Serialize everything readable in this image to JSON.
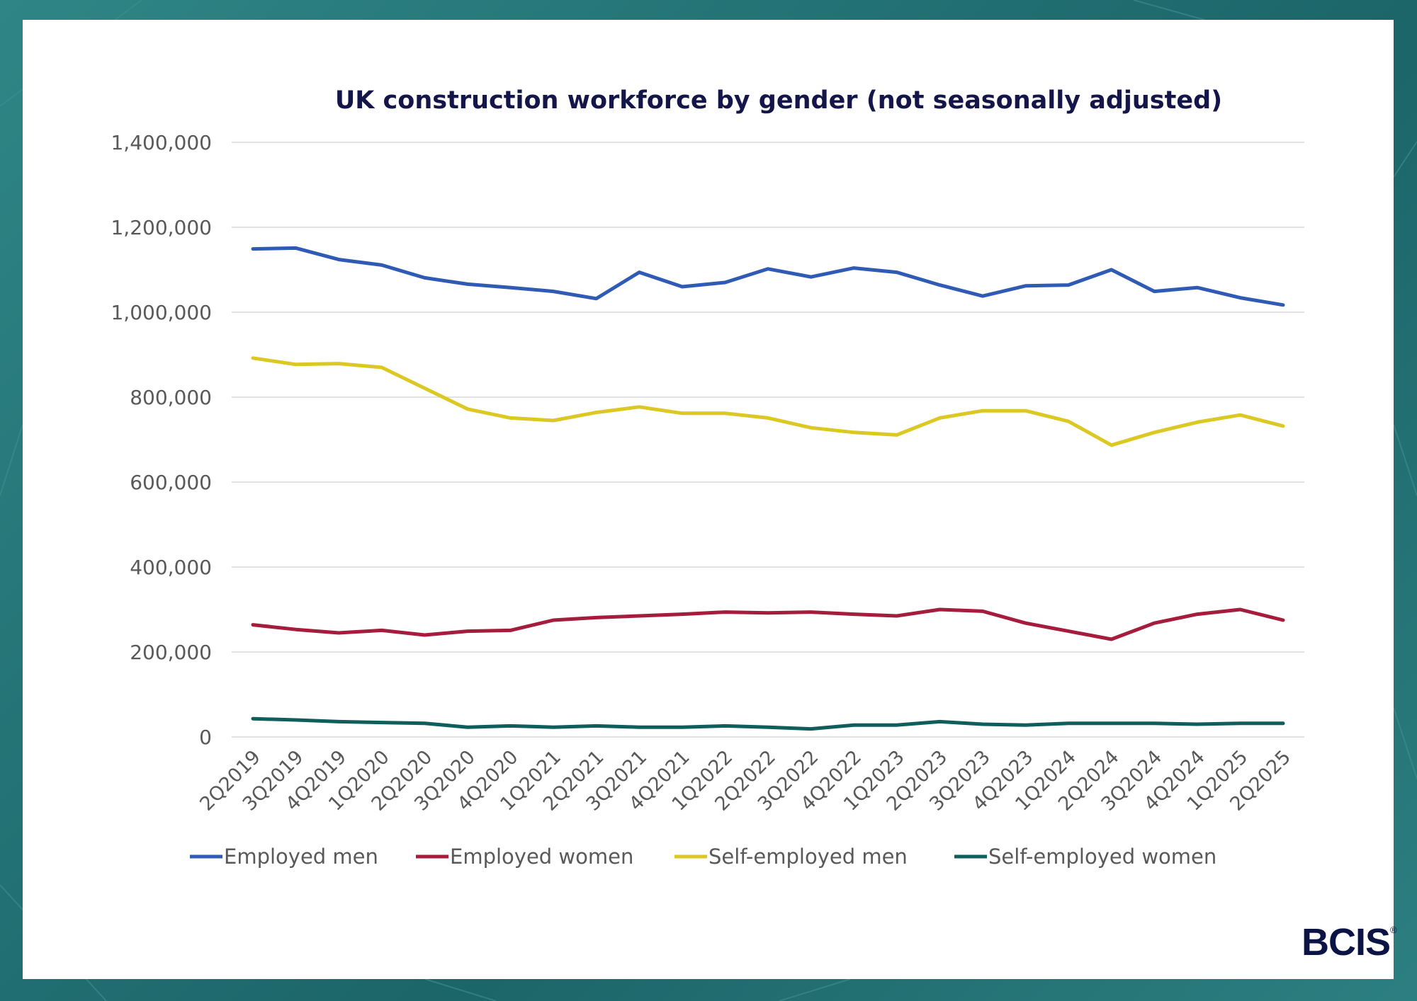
{
  "chart_data": {
    "type": "line",
    "title": "UK construction workforce by gender (not seasonally adjusted)",
    "xlabel": "",
    "ylabel": "",
    "ylim": [
      0,
      1400000
    ],
    "yticks": [
      0,
      200000,
      400000,
      600000,
      800000,
      1000000,
      1200000,
      1400000
    ],
    "ytick_labels": [
      "0",
      "200,000",
      "400,000",
      "600,000",
      "800,000",
      "1,000,000",
      "1,200,000",
      "1,400,000"
    ],
    "grid": true,
    "legend_position": "bottom",
    "categories": [
      "2Q2019",
      "3Q2019",
      "4Q2019",
      "1Q2020",
      "2Q2020",
      "3Q2020",
      "4Q2020",
      "1Q2021",
      "2Q2021",
      "3Q2021",
      "4Q2021",
      "1Q2022",
      "2Q2022",
      "3Q2022",
      "4Q2022",
      "1Q2023",
      "2Q2023",
      "3Q2023",
      "4Q2023",
      "1Q2024",
      "2Q2024",
      "3Q2024",
      "4Q2024",
      "1Q2025",
      "2Q2025"
    ],
    "series": [
      {
        "name": "Employed men",
        "color": "#2f5bb5",
        "values": [
          1149000,
          1151000,
          1124000,
          1111000,
          1081000,
          1066000,
          1058000,
          1049000,
          1032000,
          1094000,
          1060000,
          1070000,
          1102000,
          1083000,
          1104000,
          1094000,
          1064000,
          1038000,
          1062000,
          1064000,
          1100000,
          1049000,
          1058000,
          1034000,
          1017000
        ]
      },
      {
        "name": "Employed women",
        "color": "#a51c3c",
        "values": [
          264000,
          253000,
          245000,
          251000,
          240000,
          249000,
          251000,
          275000,
          281000,
          285000,
          289000,
          294000,
          292000,
          294000,
          289000,
          285000,
          300000,
          296000,
          268000,
          249000,
          230000,
          268000,
          289000,
          300000,
          275000
        ]
      },
      {
        "name": "Self-employed men",
        "color": "#dcc822",
        "values": [
          892000,
          877000,
          879000,
          870000,
          821000,
          772000,
          751000,
          745000,
          764000,
          777000,
          762000,
          762000,
          751000,
          728000,
          717000,
          711000,
          751000,
          768000,
          768000,
          743000,
          687000,
          717000,
          741000,
          758000,
          732000
        ]
      },
      {
        "name": "Self-employed women",
        "color": "#0f5e5c",
        "values": [
          43000,
          40000,
          36000,
          34000,
          32000,
          23000,
          26000,
          23000,
          26000,
          23000,
          23000,
          26000,
          23000,
          19000,
          28000,
          28000,
          36000,
          30000,
          28000,
          32000,
          32000,
          32000,
          30000,
          32000,
          32000
        ]
      }
    ]
  },
  "logo": {
    "text": "BCIS",
    "mark": "®"
  }
}
